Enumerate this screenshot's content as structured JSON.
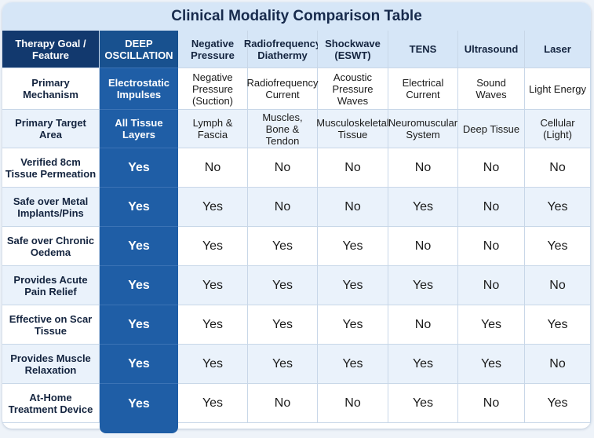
{
  "title": "Clinical Modality Comparison Table",
  "colors": {
    "highlight_column": "#1f5ea6",
    "header_dark": "#12396e",
    "header_light": "#d6e6f7",
    "row_zebra": "#eaf2fb"
  },
  "corner_header": "Therapy Goal / Feature",
  "columns": [
    "DEEP OSCILLATION",
    "Negative Pressure",
    "Radiofrequency Diathermy",
    "Shockwave (ESWT)",
    "TENS",
    "Ultrasound",
    "Laser"
  ],
  "rows": [
    {
      "feature": "Primary Mechanism",
      "values": [
        "Electrostatic Impulses",
        "Negative Pressure (Suction)",
        "Radiofrequency Current",
        "Acoustic Pressure Waves",
        "Electrical Current",
        "Sound Waves",
        "Light Energy"
      ]
    },
    {
      "feature": "Primary Target Area",
      "values": [
        "All Tissue Layers",
        "Lymph & Fascia",
        "Muscles, Bone & Tendon",
        "Musculoskeletal Tissue",
        "Neuromuscular System",
        "Deep Tissue",
        "Cellular (Light)"
      ]
    },
    {
      "feature": "Verified 8cm Tissue Permeation",
      "values": [
        "Yes",
        "No",
        "No",
        "No",
        "No",
        "No",
        "No"
      ]
    },
    {
      "feature": "Safe over Metal Implants/Pins",
      "values": [
        "Yes",
        "Yes",
        "No",
        "No",
        "Yes",
        "No",
        "Yes"
      ]
    },
    {
      "feature": "Safe over Chronic Oedema",
      "values": [
        "Yes",
        "Yes",
        "Yes",
        "Yes",
        "No",
        "No",
        "Yes"
      ]
    },
    {
      "feature": "Provides Acute Pain Relief",
      "values": [
        "Yes",
        "Yes",
        "Yes",
        "Yes",
        "Yes",
        "No",
        "No"
      ]
    },
    {
      "feature": "Effective on Scar Tissue",
      "values": [
        "Yes",
        "Yes",
        "Yes",
        "Yes",
        "No",
        "Yes",
        "Yes"
      ]
    },
    {
      "feature": "Provides Muscle Relaxation",
      "values": [
        "Yes",
        "Yes",
        "Yes",
        "Yes",
        "Yes",
        "Yes",
        "No"
      ]
    },
    {
      "feature": "At-Home Treatment Device",
      "values": [
        "Yes",
        "Yes",
        "No",
        "No",
        "Yes",
        "No",
        "Yes"
      ]
    }
  ]
}
